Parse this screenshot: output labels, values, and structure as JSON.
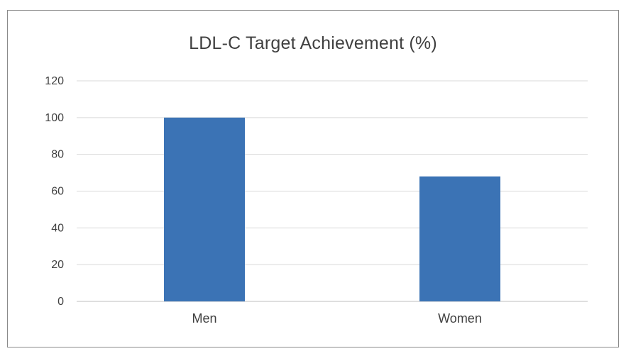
{
  "chart_data": {
    "type": "bar",
    "title": "LDL-C Target Achievement (%)",
    "xlabel": "",
    "ylabel": "",
    "categories": [
      "Men",
      "Women"
    ],
    "values": [
      100,
      68
    ],
    "ylim": [
      0,
      120
    ],
    "yticks": [
      "0",
      "20",
      "40",
      "60",
      "80",
      "100",
      "120"
    ],
    "grid": true,
    "legend": "none",
    "bar_color": "#3b73b5",
    "grid_color": "#d9d9d9",
    "axis_color": "#bfbfbf",
    "text_color": "#404040"
  }
}
